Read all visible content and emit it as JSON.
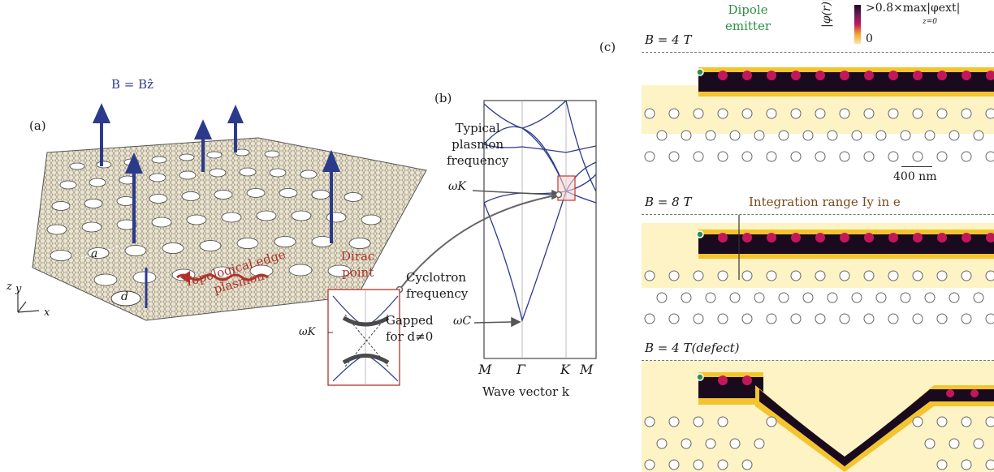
{
  "panel_labels": {
    "a": "(a)",
    "b": "(b)",
    "c": "(c)"
  },
  "panel_a": {
    "field_label": "B = Bẑ",
    "lattice_const": "a",
    "defect_size": "d",
    "axis_z": "z",
    "axis_y": "y",
    "axis_x": "x",
    "edge_plasmon_line1": "Topological edge",
    "edge_plasmon_line2": "plasmon"
  },
  "panel_b": {
    "typical_line1": "Typical",
    "typical_line2": "plasmon",
    "typical_line3": "frequency",
    "omega_k": "ωK",
    "dirac_line1": "Dirac",
    "dirac_line2": "point",
    "cyclotron_line1": "Cyclotron",
    "cyclotron_line2": "frequency",
    "gapped_line1": "Gapped",
    "gapped_line2": "for d≠0",
    "omega_c": "ωC",
    "inset_omega_k": "ωK",
    "xticks": [
      "M",
      "Γ",
      "K",
      "M"
    ],
    "xlabel": "Wave vector k"
  },
  "panel_c": {
    "dipole_line1": "Dipole",
    "dipole_line2": "emitter",
    "colorbar_label": "|φ(r)|",
    "colorbar_max": ">0.8×max|φext|",
    "colorbar_sub": "z=0",
    "colorbar_min": "0",
    "panel1_title": "B = 4 T",
    "scale_bar": "400 nm",
    "panel2_title": "B = 8 T",
    "integration": "Integration range Iy in e",
    "panel3_title": "B = 4 T(defect)",
    "colors": {
      "high": "#1a0a1e",
      "mid": "#c2185b",
      "low": "#f4c430",
      "zero": "#ffffff"
    }
  }
}
